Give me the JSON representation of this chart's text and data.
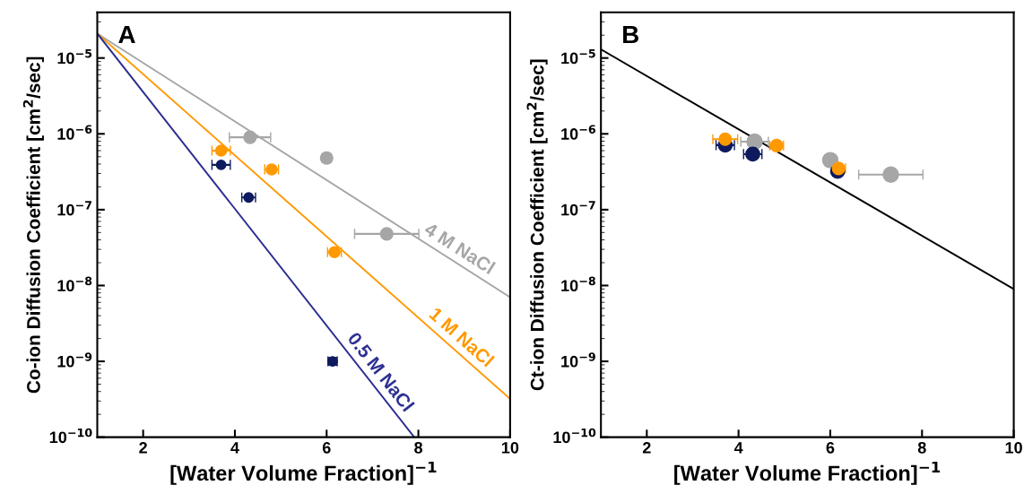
{
  "chart_data": [
    {
      "type": "scatter",
      "ylabel": "Co-ion Diffusion Coefficient [cm$^{2}$/sec]",
      "xlabel": "[Water Volume Fraction]$^{−1}$",
      "log": "y",
      "xlim": [
        1,
        10
      ],
      "xticks": [
        2,
        4,
        6,
        8,
        10
      ],
      "ylim": [
        1e-10,
        4e-05
      ],
      "yticks": [
        {
          "value": 1e-10,
          "label": "10$^{−10}$"
        },
        {
          "value": 1e-09,
          "label": "10$^{−9}$"
        },
        {
          "value": 1e-08,
          "label": "10$^{−8}$"
        },
        {
          "value": 1e-07,
          "label": "10$^{−7}$"
        },
        {
          "value": 1e-06,
          "label": "10$^{−6}$"
        },
        {
          "value": 1e-05,
          "label": "10$^{−5}$"
        }
      ],
      "grid": false,
      "series": [
        {
          "type": "line",
          "color": "#a6a6a6",
          "x": [
            1,
            10
          ],
          "values": [
            2.1e-05,
            7e-09
          ]
        },
        {
          "type": "line",
          "color": "#ff9900",
          "x": [
            1,
            10
          ],
          "values": [
            2.1e-05,
            3.2e-10
          ]
        },
        {
          "type": "line",
          "color": "#2e3192",
          "x": [
            1,
            7.91
          ],
          "values": [
            2.1e-05,
            1e-10
          ]
        },
        {
          "color": "#a6a6a6",
          "marker": "circle",
          "x": [
            4.33,
            6.0,
            7.31
          ],
          "values": [
            9e-07,
            4.8e-07,
            4.8e-08
          ],
          "xerrors": [
            0.45,
            0.1,
            0.7
          ]
        },
        {
          "color": "#ff9900",
          "marker": "circle",
          "x": [
            3.7,
            4.8,
            6.17
          ],
          "values": [
            6e-07,
            3.4e-07,
            2.75e-08
          ],
          "xerrors": [
            0.2,
            0.15,
            0.15
          ]
        },
        {
          "color": "#0d1b5e",
          "marker": "circle",
          "x": [
            3.7,
            4.3,
            6.13
          ],
          "values": [
            3.9e-07,
            1.45e-07,
            1e-09
          ],
          "xerrors": [
            0.2,
            0.15,
            0.1
          ],
          "errors": [
            null,
            null,
            [
              8.9e-10,
              1.12e-09
            ]
          ]
        }
      ],
      "annotations": [
        "A",
        "4 M NaCl",
        "1 M NaCl",
        "0.5 M NaCl"
      ]
    },
    {
      "type": "scatter",
      "ylabel": "Ct-ion Diffusion Coefficient [cm$^{2}$/sec]",
      "xlabel": "[Water Volume Fraction]$^{−1}$",
      "log": "y",
      "xlim": [
        1,
        10
      ],
      "xticks": [
        2,
        4,
        6,
        8,
        10
      ],
      "ylim": [
        1e-10,
        4e-05
      ],
      "yticks": [
        {
          "value": 1e-10,
          "label": "10$^{−10}$"
        },
        {
          "value": 1e-09,
          "label": "10$^{−9}$"
        },
        {
          "value": 1e-08,
          "label": "10$^{−8}$"
        },
        {
          "value": 1e-07,
          "label": "10$^{−7}$"
        },
        {
          "value": 1e-06,
          "label": "10$^{−6}$"
        },
        {
          "value": 1e-05,
          "label": "10$^{−5}$"
        }
      ],
      "grid": false,
      "series": [
        {
          "type": "line",
          "color": "#000000",
          "x": [
            1,
            10
          ],
          "values": [
            1.3e-05,
            9e-09
          ]
        },
        {
          "color": "#a6a6a6",
          "marker": "circle",
          "x": [
            4.35,
            6.0,
            7.32
          ],
          "values": [
            7.9e-07,
            4.5e-07,
            2.9e-07
          ],
          "xerrors": [
            0.3,
            0.1,
            0.7
          ]
        },
        {
          "color": "#0d1b5e",
          "marker": "circle",
          "x": [
            3.71,
            4.31,
            6.16
          ],
          "values": [
            7.1e-07,
            5.4e-07,
            3.2e-07
          ],
          "xerrors": [
            0.2,
            0.2,
            0.1
          ]
        },
        {
          "color": "#ff9900",
          "marker": "circle",
          "x": [
            3.71,
            4.83,
            6.18
          ],
          "values": [
            8.5e-07,
            7e-07,
            3.5e-07
          ],
          "xerrors": [
            0.27,
            0.15,
            0.15
          ]
        }
      ],
      "annotations": [
        "B"
      ]
    }
  ]
}
